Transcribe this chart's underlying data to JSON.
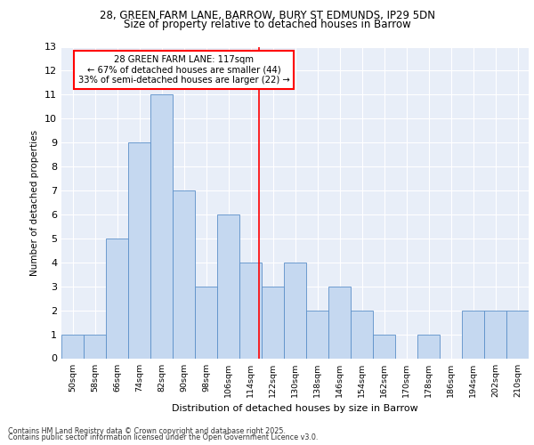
{
  "title1": "28, GREEN FARM LANE, BARROW, BURY ST EDMUNDS, IP29 5DN",
  "title2": "Size of property relative to detached houses in Barrow",
  "xlabel": "Distribution of detached houses by size in Barrow",
  "ylabel": "Number of detached properties",
  "categories": [
    "50sqm",
    "58sqm",
    "66sqm",
    "74sqm",
    "82sqm",
    "90sqm",
    "98sqm",
    "106sqm",
    "114sqm",
    "122sqm",
    "130sqm",
    "138sqm",
    "146sqm",
    "154sqm",
    "162sqm",
    "170sqm",
    "178sqm",
    "186sqm",
    "194sqm",
    "202sqm",
    "210sqm"
  ],
  "values": [
    1,
    1,
    5,
    9,
    11,
    7,
    3,
    6,
    4,
    3,
    4,
    2,
    3,
    2,
    1,
    0,
    1,
    0,
    2,
    2,
    2
  ],
  "bar_color": "#c5d8f0",
  "bar_edge_color": "#5b8fc9",
  "ref_line_color": "red",
  "annotation_line1": "28 GREEN FARM LANE: 117sqm",
  "annotation_line2": "← 67% of detached houses are smaller (44)",
  "annotation_line3": "33% of semi-detached houses are larger (22) →",
  "ylim": [
    0,
    13
  ],
  "yticks": [
    0,
    1,
    2,
    3,
    4,
    5,
    6,
    7,
    8,
    9,
    10,
    11,
    12,
    13
  ],
  "background_color": "#e8eef8",
  "grid_color": "white",
  "footer1": "Contains HM Land Registry data © Crown copyright and database right 2025.",
  "footer2": "Contains public sector information licensed under the Open Government Licence v3.0."
}
